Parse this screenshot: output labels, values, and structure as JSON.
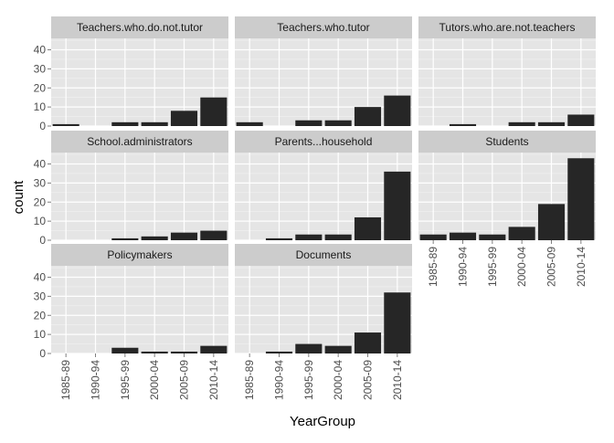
{
  "chart_data": {
    "type": "bar",
    "layout": "facet-grid",
    "xlabel": "YearGroup",
    "ylabel": "count",
    "ylim": [
      0,
      46
    ],
    "yticks": [
      0,
      10,
      20,
      30,
      40
    ],
    "categories": [
      "1985-89",
      "1990-94",
      "1995-99",
      "2000-04",
      "2005-09",
      "2010-14"
    ],
    "bar_color": "#262626",
    "panel_background": "#e5e5e5",
    "strip_background": "#cccccc",
    "grid": true,
    "panels": [
      {
        "name": "Teachers.who.do.not.tutor",
        "values": [
          1,
          0,
          2,
          2,
          8,
          15
        ]
      },
      {
        "name": "Teachers.who.tutor",
        "values": [
          2,
          0,
          3,
          3,
          10,
          16
        ]
      },
      {
        "name": "Tutors.who.are.not.teachers",
        "values": [
          0,
          1,
          0,
          2,
          2,
          6
        ]
      },
      {
        "name": "School.administrators",
        "values": [
          0,
          0,
          1,
          2,
          4,
          5
        ]
      },
      {
        "name": "Parents...household",
        "values": [
          0,
          1,
          3,
          3,
          12,
          36
        ]
      },
      {
        "name": "Students",
        "values": [
          3,
          4,
          3,
          7,
          19,
          43
        ]
      },
      {
        "name": "Policymakers",
        "values": [
          0,
          0,
          3,
          1,
          1,
          4
        ]
      },
      {
        "name": "Documents",
        "values": [
          0,
          1,
          5,
          4,
          11,
          32
        ]
      }
    ]
  }
}
